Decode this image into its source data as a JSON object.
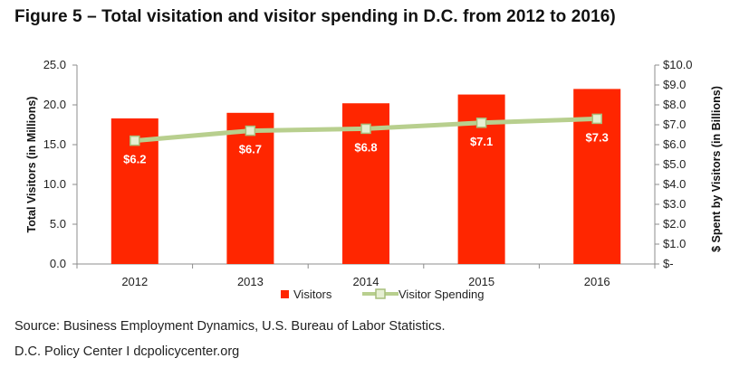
{
  "title": "Figure 5 – Total visitation and visitor spending in D.C. from 2012 to 2016)",
  "chart_data": {
    "type": "bar",
    "categories": [
      "2012",
      "2013",
      "2014",
      "2015",
      "2016"
    ],
    "series": [
      {
        "name": "Visitors",
        "kind": "bar",
        "axis": "left",
        "color": "#ff2600",
        "values": [
          18.3,
          19.0,
          20.2,
          21.3,
          22.0
        ]
      },
      {
        "name": "Visitor Spending",
        "kind": "line",
        "axis": "right",
        "color": "#b8cf8e",
        "values": [
          6.2,
          6.7,
          6.8,
          7.1,
          7.3
        ],
        "labels": [
          "$6.2",
          "$6.7",
          "$6.8",
          "$7.1",
          "$7.3"
        ]
      }
    ],
    "y_left": {
      "label": "Total Visitors (in Millions)",
      "lim": [
        0,
        25
      ],
      "ticks": [
        "0.0",
        "5.0",
        "10.0",
        "15.0",
        "20.0",
        "25.0"
      ]
    },
    "y_right": {
      "label": "$ Spent by Visitors (in Billions)",
      "lim": [
        0,
        10
      ],
      "ticks": [
        "$-",
        "$1.0",
        "$2.0",
        "$3.0",
        "$4.0",
        "$5.0",
        "$6.0",
        "$7.0",
        "$8.0",
        "$9.0",
        "$10.0"
      ]
    },
    "legend": {
      "position": "bottom",
      "items": [
        "Visitors",
        "Visitor Spending"
      ]
    },
    "grid": false
  },
  "footer": {
    "source": "Source: Business Employment Dynamics, U.S. Bureau of Labor Statistics.",
    "credit": "D.C. Policy Center  I  dcpolicycenter.org"
  }
}
